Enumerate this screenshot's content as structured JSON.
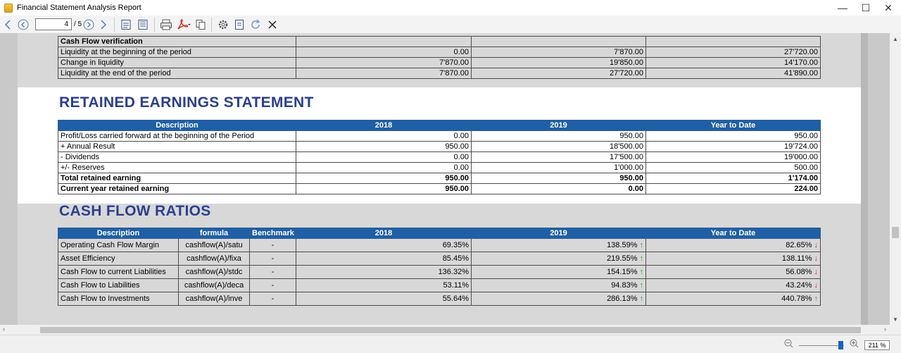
{
  "window": {
    "title": "Financial Statement Analysis Report"
  },
  "toolbar": {
    "current_page": "4",
    "page_total": "/ 5"
  },
  "cashflow_verification": {
    "title": "Cash Flow verification",
    "rows": [
      {
        "label": "Liquidity at the beginning of the period",
        "v1": "0.00",
        "v2": "7'870.00",
        "v3": "27'720.00"
      },
      {
        "label": "Change in liquidity",
        "v1": "7'870.00",
        "v2": "19'850.00",
        "v3": "14'170.00"
      },
      {
        "label": "Liquidity at the end of the period",
        "v1": "7'870.00",
        "v2": "27'720.00",
        "v3": "41'890.00"
      }
    ]
  },
  "retained_earnings": {
    "title": "RETAINED EARNINGS STATEMENT",
    "headers": [
      "Description",
      "2018",
      "2019",
      "Year to Date"
    ],
    "rows": [
      {
        "label": "Profit/Loss carried forward at the beginning of the Period",
        "v1": "0.00",
        "v2": "950.00",
        "v3": "950.00"
      },
      {
        "label": "+ Annual Result",
        "v1": "950.00",
        "v2": "18'500.00",
        "v3": "19'724.00"
      },
      {
        "label": "- Dividends",
        "v1": "0.00",
        "v2": "17'500.00",
        "v3": "19'000.00"
      },
      {
        "label": "+/- Reserves",
        "v1": "0.00",
        "v2": "1'000.00",
        "v3": "500.00"
      },
      {
        "label": "Total retained earning",
        "v1": "950.00",
        "v2": "950.00",
        "v3": "1'174.00"
      },
      {
        "label": "Current year retained earning",
        "v1": "950.00",
        "v2": "0.00",
        "v3": "224.00"
      }
    ]
  },
  "cashflow_ratios": {
    "title": "CASH FLOW RATIOS",
    "headers": [
      "Description",
      "formula",
      "Benchmark",
      "2018",
      "2019",
      "Year to Date"
    ],
    "rows": [
      {
        "label": "Operating Cash Flow Margin",
        "formula": "cashflow(A)/satu",
        "bench": "-",
        "v1": "69.35%",
        "v2": "138.59%",
        "v3": "82.65%"
      },
      {
        "label": "Asset Efficiency",
        "formula": "cashflow(A)/fixa",
        "bench": "-",
        "v1": "85.45%",
        "v2": "219.55%",
        "v3": "138.11%"
      },
      {
        "label": "Cash Flow to current Liabilities",
        "formula": "cashflow(A)/stdc",
        "bench": "-",
        "v1": "136.32%",
        "v2": "154.15%",
        "v3": "56.08%"
      },
      {
        "label": "Cash Flow to Liabilities",
        "formula": "cashflow(A)/deca",
        "bench": "-",
        "v1": "53.11%",
        "v2": "94.83%",
        "v3": "43.24%"
      },
      {
        "label": "Cash Flow to Investments",
        "formula": "cashflow(A)/inve",
        "bench": "-",
        "v1": "55.64%",
        "v2": "286.13%",
        "v3": "440.78%"
      }
    ],
    "arrows": {
      "up": "↑",
      "down": "↓"
    }
  },
  "status": {
    "zoom": "211 %"
  },
  "colors": {
    "header_blue": "#1f5fa6",
    "title_blue": "#2b3f8f",
    "up": "#2a9c2a",
    "down": "#d42020"
  }
}
